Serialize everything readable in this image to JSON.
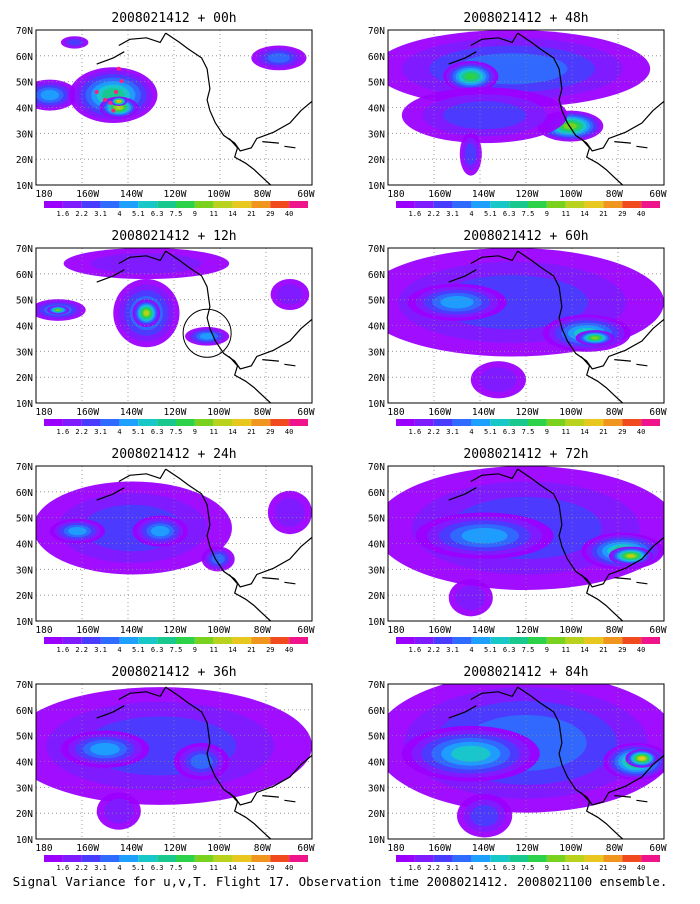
{
  "panels": [
    {
      "title": "2008021412 + 00h"
    },
    {
      "title": "2008021412 + 48h"
    },
    {
      "title": "2008021412 + 12h"
    },
    {
      "title": "2008021412 + 60h"
    },
    {
      "title": "2008021412 + 24h"
    },
    {
      "title": "2008021412 + 72h"
    },
    {
      "title": "2008021412 + 36h"
    },
    {
      "title": "2008021412 + 84h"
    }
  ],
  "lat_labels": [
    "70N",
    "60N",
    "50N",
    "40N",
    "30N",
    "20N",
    "10N"
  ],
  "lon_labels": [
    "180",
    "160W",
    "140W",
    "120W",
    "100W",
    "80W",
    "60W"
  ],
  "colorbar": {
    "labels": [
      "1.6",
      "2.2",
      "3.1",
      "4",
      "5.1",
      "6.3",
      "7.5",
      "9",
      "11",
      "14",
      "21",
      "29",
      "40"
    ],
    "colors": [
      "#9b00ff",
      "#7f1cff",
      "#4a3cff",
      "#2f6bff",
      "#1ea0ff",
      "#18c8c8",
      "#19c88c",
      "#2cd24a",
      "#7ad21e",
      "#b8d21e",
      "#e8c81e",
      "#f0961e",
      "#f04a1e",
      "#f0148c"
    ]
  },
  "caption": "Signal Variance for u,v,T. Flight 17. Observation time 2008021412. 2008021100 ensemble."
}
